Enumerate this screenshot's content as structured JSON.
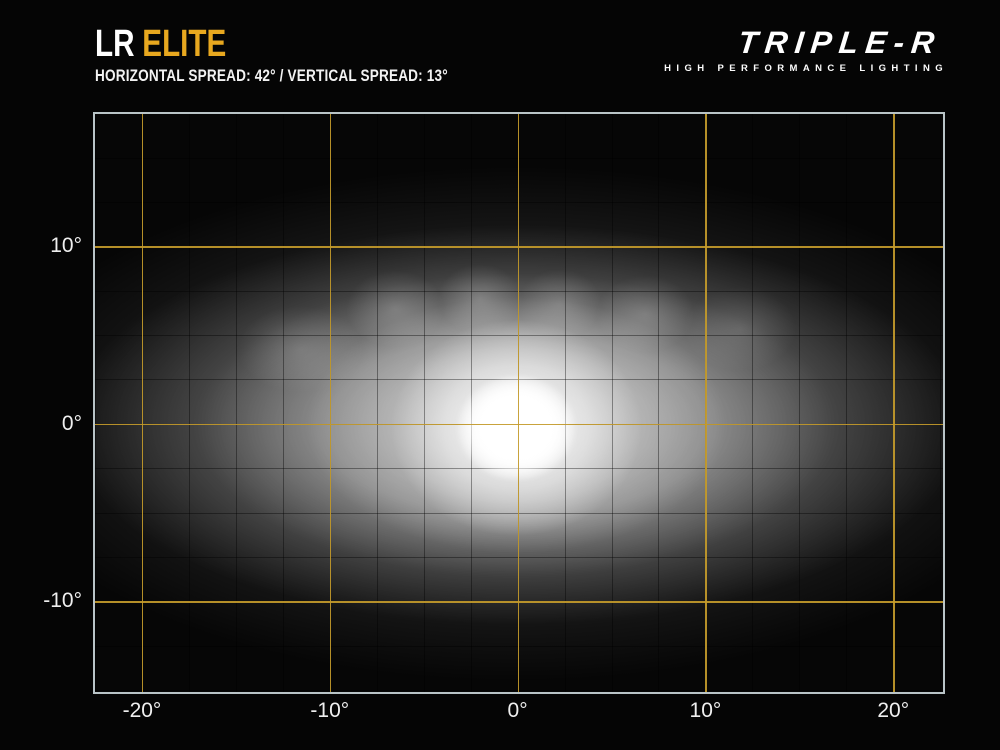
{
  "header": {
    "title_prefix": "LR",
    "title_suffix": "ELITE",
    "subtitle": "HORIZONTAL SPREAD: 42° / VERTICAL SPREAD:  13°",
    "accent_color": "#E8A81F"
  },
  "logo": {
    "brand": "TRIPLE-R",
    "tagline": "HIGH PERFORMANCE LIGHTING"
  },
  "chart_data": {
    "type": "heatmap",
    "description": "Photometric beam pattern plot: white light-intensity glow on black, centred on 0°,0°",
    "x_axis": {
      "unit": "degrees horizontal",
      "range": [
        -22.5,
        22.65
      ],
      "tick_values": [
        -20,
        -10,
        0,
        10,
        20
      ],
      "tick_labels": [
        "-20°",
        "-10°",
        "0°",
        "10°",
        "20°"
      ]
    },
    "y_axis": {
      "unit": "degrees vertical",
      "range": [
        -15.1,
        17.45
      ],
      "tick_values": [
        10,
        0,
        -10
      ],
      "tick_labels": [
        "10°",
        "0°",
        "-10°"
      ]
    },
    "grid": {
      "major_step_deg": 10,
      "minor_step_deg": 2.5,
      "major_color": "#C49B2B",
      "minor_color": "rgba(0,0,0,0.38)"
    },
    "plot_border_color": "#B9C4C7",
    "beam_profile": {
      "horizontal_spread_deg": 42,
      "vertical_spread_deg": 13,
      "center_deg": [
        0,
        0
      ],
      "hotspot_full_width_deg": [
        6.5,
        6
      ],
      "bright_region_full_width_deg": [
        24,
        10
      ],
      "visible_glow_full_width_deg": [
        44,
        21
      ],
      "peak_relative_intensity": 1.0,
      "scallop_lobes_top_deg": [
        [
          -6.5,
          7
        ],
        [
          -2,
          7.5
        ],
        [
          2.5,
          7
        ],
        [
          7,
          6.5
        ],
        [
          12,
          6
        ]
      ]
    }
  }
}
